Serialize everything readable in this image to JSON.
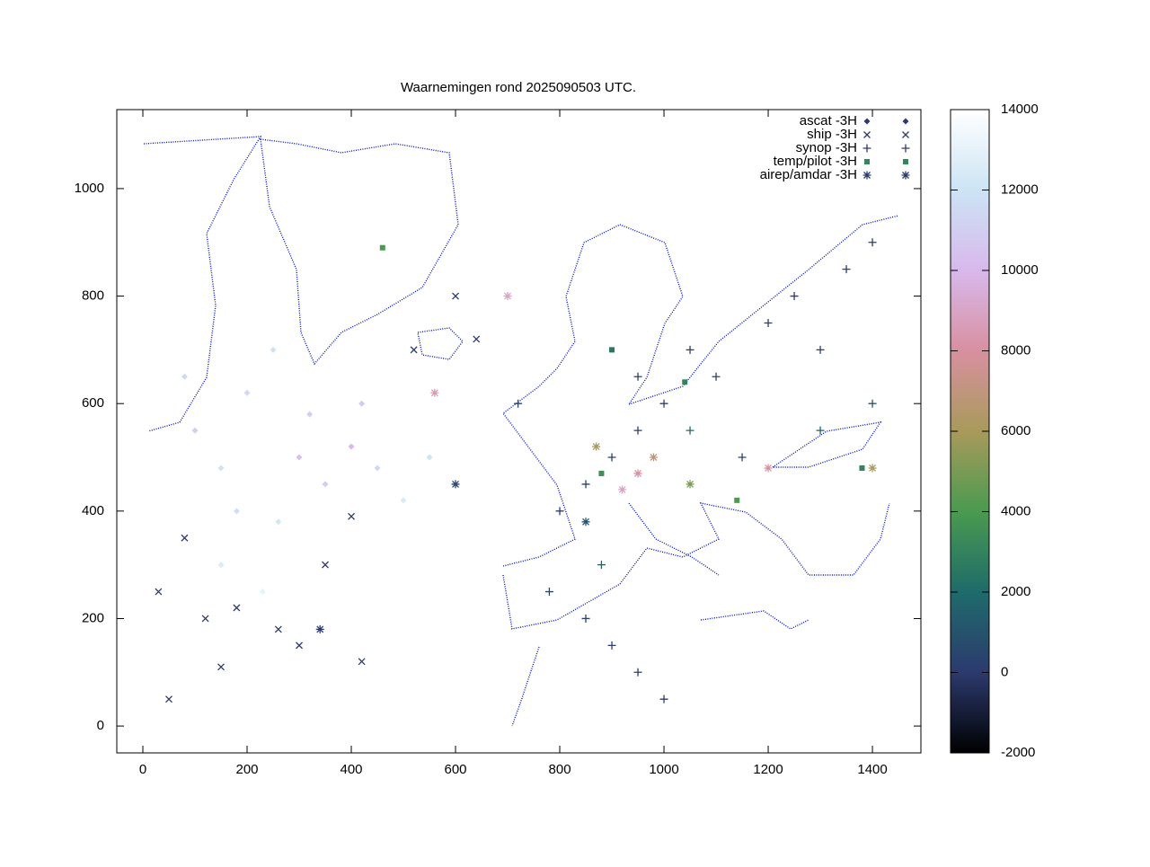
{
  "chart_data": {
    "type": "scatter",
    "title": "Waarnemingen rond 2025090503 UTC.",
    "xlim": [
      -50,
      1493
    ],
    "ylim": [
      -50,
      1147
    ],
    "xticks": [
      0,
      200,
      400,
      600,
      800,
      1000,
      1200,
      1400
    ],
    "yticks": [
      0,
      200,
      400,
      600,
      800,
      1000
    ],
    "cblim": [
      -2000,
      14000
    ],
    "cbticks": [
      -2000,
      0,
      2000,
      4000,
      6000,
      8000,
      10000,
      12000,
      14000
    ],
    "palette": [
      "#000000",
      "#2c3a6e",
      "#1f6b6b",
      "#4a9a50",
      "#a89a5a",
      "#d890a0",
      "#d8b8ec",
      "#cce4f4",
      "#ffffff"
    ],
    "series": [
      {
        "name": "ascat -3H",
        "marker": "diamond",
        "color": "#2c3a6e",
        "x": [
          100,
          150,
          200,
          250,
          300,
          350,
          400,
          450,
          500,
          550,
          180,
          260,
          320,
          420,
          150,
          230,
          80
        ],
        "y": [
          550,
          480,
          620,
          700,
          500,
          450,
          520,
          480,
          420,
          500,
          400,
          380,
          580,
          600,
          300,
          250,
          650
        ],
        "z": [
          11000,
          12000,
          11500,
          12000,
          10500,
          11000,
          10000,
          11500,
          12500,
          12000,
          11800,
          12200,
          11000,
          10800,
          12500,
          13000,
          11500
        ]
      },
      {
        "name": "ship -3H",
        "marker": "x",
        "color": "#2c3a6e",
        "x": [
          30,
          80,
          120,
          180,
          260,
          300,
          350,
          400,
          420,
          520,
          600,
          640,
          50,
          150
        ],
        "y": [
          250,
          350,
          200,
          220,
          180,
          150,
          300,
          390,
          120,
          700,
          800,
          720,
          50,
          110
        ],
        "z": [
          0,
          200,
          0,
          0,
          0,
          0,
          0,
          0,
          0,
          0,
          0,
          0,
          0,
          0
        ]
      },
      {
        "name": "synop -3H",
        "marker": "plus",
        "color": "#2c3a6e",
        "x": [
          800,
          850,
          900,
          950,
          1000,
          1050,
          1100,
          1150,
          1200,
          1250,
          1300,
          1350,
          1400,
          780,
          850,
          900,
          950,
          1000,
          720,
          880,
          1050,
          1300,
          1400,
          950
        ],
        "y": [
          400,
          450,
          500,
          550,
          600,
          700,
          650,
          500,
          750,
          800,
          700,
          850,
          900,
          250,
          200,
          150,
          100,
          50,
          600,
          300,
          550,
          550,
          600,
          650
        ],
        "z": [
          100,
          300,
          200,
          100,
          200,
          150,
          300,
          400,
          200,
          100,
          200,
          150,
          100,
          500,
          300,
          200,
          100,
          50,
          400,
          1500,
          2000,
          1500,
          1200,
          300
        ]
      },
      {
        "name": "temp/pilot -3H",
        "marker": "square",
        "color": "#2e8b57",
        "x": [
          1040,
          880,
          1140,
          900,
          1380,
          460
        ],
        "y": [
          640,
          470,
          420,
          700,
          480,
          890
        ],
        "z": [
          3000,
          3500,
          4000,
          2500,
          3000,
          4000
        ]
      },
      {
        "name": "airep/amdar -3H",
        "marker": "asterisk",
        "color": "#2c3a6e",
        "x": [
          920,
          950,
          980,
          870,
          1050,
          560,
          700,
          1200,
          1400,
          850,
          600,
          340
        ],
        "y": [
          440,
          470,
          500,
          520,
          450,
          620,
          800,
          480,
          480,
          380,
          450,
          180
        ],
        "z": [
          9000,
          8000,
          7000,
          6000,
          5000,
          8500,
          9000,
          8000,
          6000,
          1000,
          500,
          0
        ]
      }
    ]
  }
}
